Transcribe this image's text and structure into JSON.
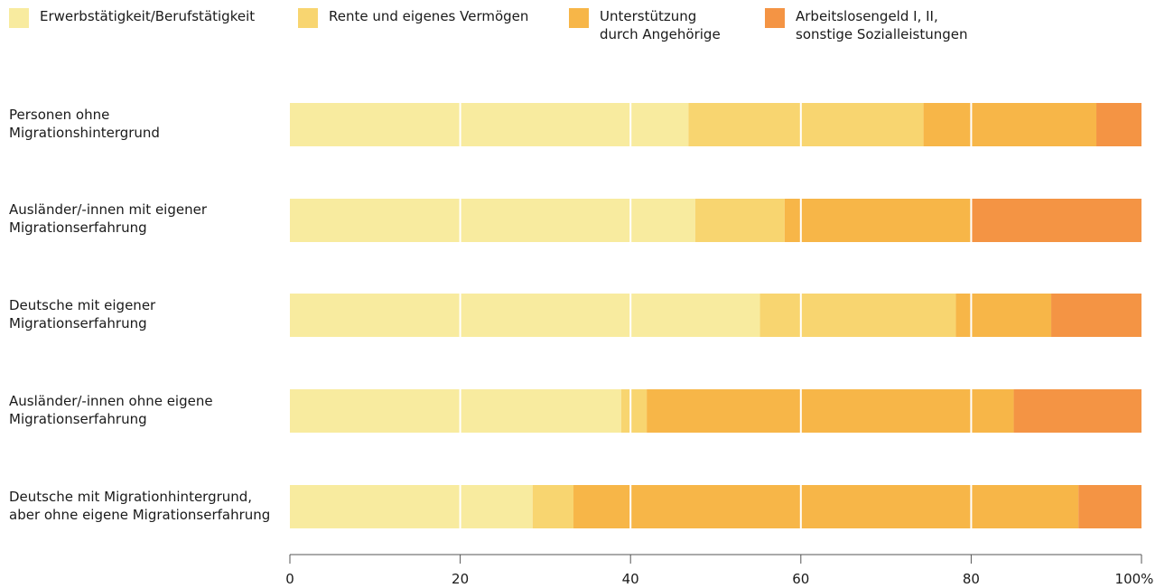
{
  "chart_data": {
    "type": "bar",
    "orientation": "horizontal",
    "stacked": true,
    "legend_position": "top",
    "categories": [
      "Personen ohne\nMigrationshintergrund",
      "Ausländer/-innen mit eigener\nMigrationserfahrung",
      "Deutsche mit eigener\nMigrationserfahrung",
      "Ausländer/-innen ohne eigene\nMigrationserfahrung",
      "Deutsche mit Migrationhintergrund,\naber ohne eigene Migrationserfahrung"
    ],
    "series": [
      {
        "name": "Erwerbstätigkeit/Berufstätigkeit",
        "color": "#f8eb9f",
        "values": [
          46.8,
          47.6,
          55.2,
          38.9,
          28.5
        ]
      },
      {
        "name": "Rente und eigenes Vermögen",
        "color": "#f8d570",
        "values": [
          27.6,
          10.5,
          23.0,
          3.0,
          4.8
        ]
      },
      {
        "name": "Unterstützung\ndurch Angehörige",
        "color": "#f7b648",
        "values": [
          20.3,
          22.0,
          11.2,
          43.1,
          59.3
        ]
      },
      {
        "name": "Arbeitslosengeld I, II,\nsonstige Sozialleistungen",
        "color": "#f49444",
        "values": [
          5.3,
          19.9,
          10.6,
          15.0,
          7.4
        ]
      }
    ],
    "xlim": [
      0,
      100
    ],
    "x_ticks": [
      0,
      20,
      40,
      60,
      80,
      100
    ],
    "x_tick_labels": [
      "0",
      "20",
      "40",
      "60",
      "80",
      "100%"
    ],
    "gridlines": true,
    "title": "",
    "xlabel": "",
    "ylabel": ""
  }
}
